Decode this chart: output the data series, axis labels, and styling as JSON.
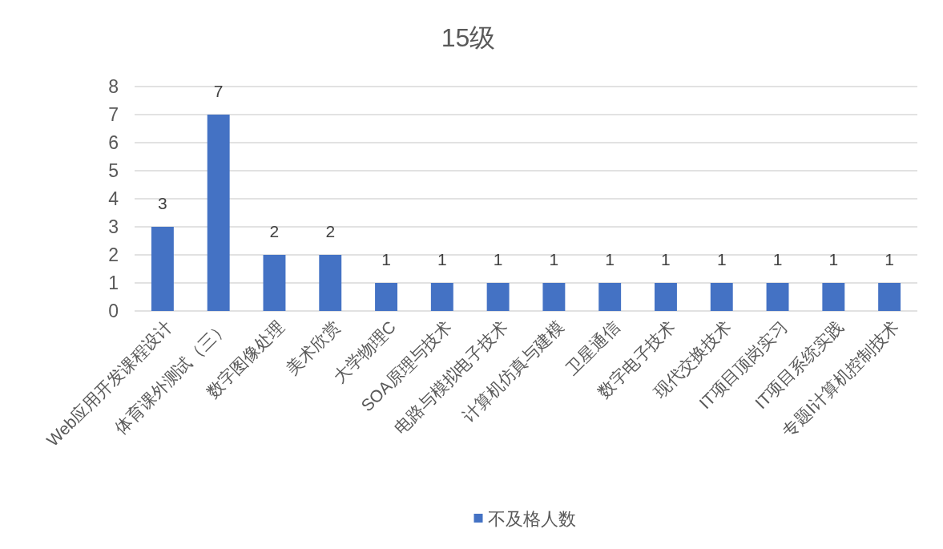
{
  "chart_data": {
    "type": "bar",
    "title": "15级",
    "categories": [
      "Web应用开发课程设计",
      "体育课外测试（三）",
      "数字图像处理",
      "美术欣赏",
      "大学物理C",
      "SOA原理与技术",
      "电路与模拟电子技术",
      "计算机仿真与建模",
      "卫星通信",
      "数字电子技术",
      "现代交换技术",
      "IT项目顶岗实习",
      "IT项目系统实践",
      "专题Ⅰ计算机控制技术"
    ],
    "series": [
      {
        "name": "不及格人数",
        "color": "#4472c4",
        "values": [
          3,
          7,
          2,
          2,
          1,
          1,
          1,
          1,
          1,
          1,
          1,
          1,
          1,
          1
        ]
      }
    ],
    "ylim": [
      0,
      8
    ],
    "yticks": [
      0,
      1,
      2,
      3,
      4,
      5,
      6,
      7,
      8
    ],
    "grid": "y",
    "legend": "bottom",
    "data_labels": true
  }
}
